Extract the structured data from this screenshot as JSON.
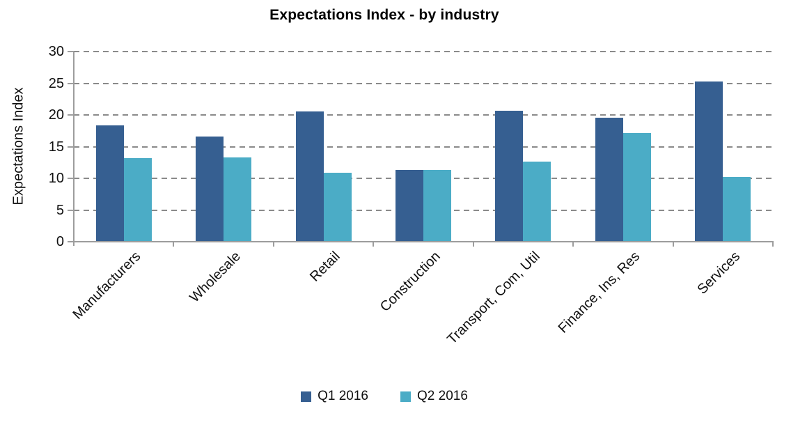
{
  "chart_data": {
    "type": "bar",
    "title": "Expectations Index - by industry",
    "ylabel": "Expectations Index",
    "xlabel": "",
    "categories": [
      "Manufacturers",
      "Wholesale",
      "Retail",
      "Construction",
      "Transport, Com, Util",
      "Finance, Ins, Res",
      "Services"
    ],
    "series": [
      {
        "name": "Q1 2016",
        "color": "#365F91",
        "values": [
          18.4,
          16.6,
          20.6,
          11.3,
          20.7,
          19.6,
          25.3
        ]
      },
      {
        "name": "Q2 2016",
        "color": "#4BACC6",
        "values": [
          13.2,
          13.3,
          10.9,
          11.3,
          12.6,
          17.1,
          10.2
        ]
      }
    ],
    "ylim": [
      0,
      30
    ],
    "yticks": [
      0,
      5,
      10,
      15,
      20,
      25,
      30
    ],
    "grid": "horizontal-dashed",
    "legend_position": "bottom",
    "colors": {
      "background": "#FFFFFF",
      "gridline": "#8A8A8A",
      "axis": "#9D9D9D",
      "text": "#000000"
    }
  }
}
